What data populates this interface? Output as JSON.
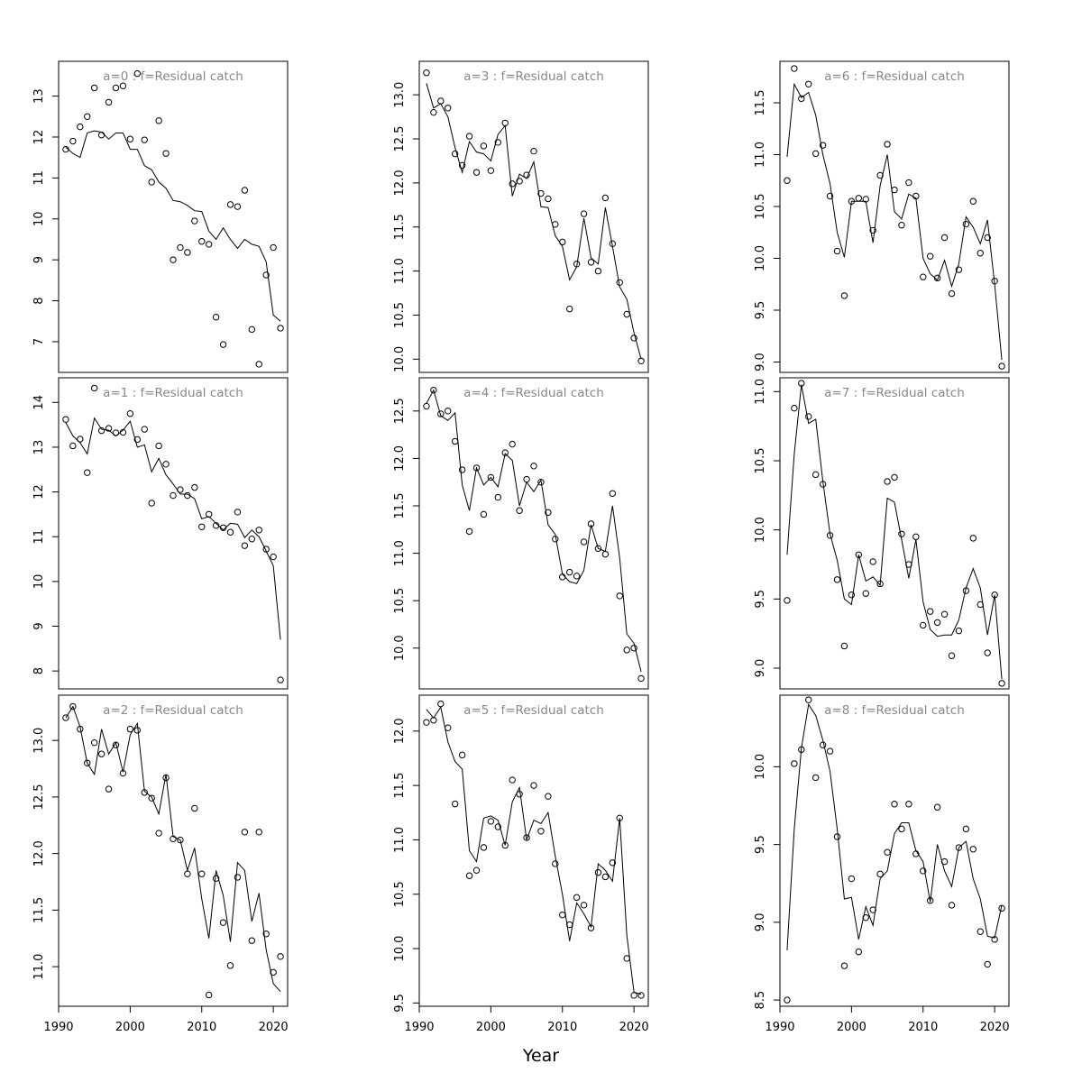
{
  "figure": {
    "xlabel": "Year",
    "colors": {
      "axes": "#000000",
      "panel_title": "#888888",
      "line": "#000000",
      "points": "#000000"
    }
  },
  "chart_data": [
    {
      "type": "scatter",
      "title": "a=0  :  f=Residual catch",
      "x": [
        1991,
        1992,
        1993,
        1994,
        1995,
        1996,
        1997,
        1998,
        1999,
        2000,
        2001,
        2002,
        2003,
        2004,
        2005,
        2006,
        2007,
        2008,
        2009,
        2010,
        2011,
        2012,
        2013,
        2014,
        2015,
        2016,
        2017,
        2018,
        2019,
        2020,
        2021
      ],
      "series": [
        {
          "kind": "points",
          "values": [
            11.7,
            11.9,
            12.25,
            12.5,
            13.2,
            12.05,
            12.85,
            13.2,
            13.25,
            11.95,
            13.55,
            11.93,
            10.9,
            12.4,
            11.6,
            9.0,
            9.3,
            9.18,
            9.95,
            9.45,
            9.38,
            7.6,
            6.93,
            10.35,
            10.3,
            10.7,
            7.3,
            6.45,
            8.63,
            9.3,
            7.33
          ]
        },
        {
          "kind": "line",
          "values": [
            11.75,
            11.6,
            11.5,
            12.1,
            12.15,
            12.12,
            11.95,
            12.1,
            12.1,
            11.7,
            11.7,
            11.3,
            11.2,
            10.9,
            10.75,
            10.45,
            10.42,
            10.33,
            10.2,
            10.18,
            9.7,
            9.5,
            9.78,
            9.5,
            9.28,
            9.5,
            9.38,
            9.33,
            8.95,
            7.65,
            7.5
          ]
        }
      ],
      "xlim": [
        1990,
        2022
      ],
      "ylim": [
        6.25,
        13.85
      ],
      "yticks": [
        7,
        8,
        9,
        10,
        11,
        12,
        13
      ],
      "xticks": []
    },
    {
      "type": "scatter",
      "title": "a=1  :  f=Residual catch",
      "x": [
        1991,
        1992,
        1993,
        1994,
        1995,
        1996,
        1997,
        1998,
        1999,
        2000,
        2001,
        2002,
        2003,
        2004,
        2005,
        2006,
        2007,
        2008,
        2009,
        2010,
        2011,
        2012,
        2013,
        2014,
        2015,
        2016,
        2017,
        2018,
        2019,
        2020,
        2021
      ],
      "series": [
        {
          "kind": "points",
          "values": [
            13.62,
            13.03,
            13.18,
            12.43,
            14.32,
            13.37,
            13.42,
            13.32,
            13.33,
            13.75,
            13.17,
            13.4,
            11.75,
            13.03,
            12.62,
            11.92,
            12.05,
            11.92,
            12.1,
            11.22,
            11.5,
            11.25,
            11.2,
            11.1,
            11.55,
            10.8,
            10.95,
            11.15,
            10.72,
            10.55,
            7.8
          ]
        },
        {
          "kind": "line",
          "values": [
            13.55,
            13.25,
            13.1,
            12.85,
            13.65,
            13.4,
            13.38,
            13.25,
            13.38,
            13.58,
            13.0,
            13.05,
            12.45,
            12.75,
            12.38,
            12.18,
            11.95,
            11.95,
            11.85,
            11.4,
            11.45,
            11.3,
            11.15,
            11.3,
            11.28,
            10.98,
            11.15,
            11.0,
            10.68,
            10.35,
            8.7
          ]
        }
      ],
      "xlim": [
        1990,
        2022
      ],
      "ylim": [
        7.6,
        14.55
      ],
      "yticks": [
        8,
        9,
        10,
        11,
        12,
        13,
        14
      ],
      "xticks": []
    },
    {
      "type": "scatter",
      "title": "a=2  :  f=Residual catch",
      "x": [
        1991,
        1992,
        1993,
        1994,
        1995,
        1996,
        1997,
        1998,
        1999,
        2000,
        2001,
        2002,
        2003,
        2004,
        2005,
        2006,
        2007,
        2008,
        2009,
        2010,
        2011,
        2012,
        2013,
        2014,
        2015,
        2016,
        2017,
        2018,
        2019,
        2020,
        2021
      ],
      "series": [
        {
          "kind": "points",
          "values": [
            13.2,
            13.3,
            13.1,
            12.8,
            12.98,
            12.88,
            12.57,
            12.96,
            12.71,
            13.1,
            13.09,
            12.54,
            12.49,
            12.18,
            12.67,
            12.13,
            12.12,
            11.82,
            12.4,
            11.82,
            10.75,
            11.78,
            11.39,
            11.01,
            11.79,
            12.19,
            11.23,
            12.19,
            11.29,
            10.95,
            11.09
          ]
        },
        {
          "kind": "line",
          "values": [
            13.2,
            13.3,
            13.12,
            12.8,
            12.7,
            13.1,
            12.88,
            12.98,
            12.72,
            13.05,
            13.15,
            12.55,
            12.5,
            12.35,
            12.7,
            12.15,
            12.12,
            11.85,
            12.05,
            11.6,
            11.25,
            11.85,
            11.63,
            11.22,
            11.92,
            11.85,
            11.4,
            11.65,
            11.15,
            10.85,
            10.78
          ]
        }
      ],
      "xlim": [
        1990,
        2022
      ],
      "ylim": [
        10.65,
        13.4
      ],
      "yticks": [
        11.0,
        11.5,
        12.0,
        12.5,
        13.0
      ],
      "xticks": [
        1990,
        2000,
        2010,
        2020
      ]
    },
    {
      "type": "scatter",
      "title": "a=3  :  f=Residual catch",
      "x": [
        1991,
        1992,
        1993,
        1994,
        1995,
        1996,
        1997,
        1998,
        1999,
        2000,
        2001,
        2002,
        2003,
        2004,
        2005,
        2006,
        2007,
        2008,
        2009,
        2010,
        2011,
        2012,
        2013,
        2014,
        2015,
        2016,
        2017,
        2018,
        2019,
        2020,
        2021
      ],
      "series": [
        {
          "kind": "points",
          "values": [
            13.25,
            12.8,
            12.93,
            12.85,
            12.33,
            12.2,
            12.53,
            12.12,
            12.42,
            12.14,
            12.46,
            12.68,
            11.99,
            12.02,
            12.09,
            12.36,
            11.88,
            11.82,
            11.53,
            11.33,
            10.57,
            11.08,
            11.65,
            11.1,
            11.0,
            11.83,
            11.31,
            10.87,
            10.51,
            10.24,
            9.98
          ]
        },
        {
          "kind": "line",
          "values": [
            13.13,
            12.85,
            12.9,
            12.75,
            12.4,
            12.12,
            12.47,
            12.35,
            12.33,
            12.25,
            12.55,
            12.65,
            11.85,
            12.1,
            12.05,
            12.24,
            11.73,
            11.72,
            11.4,
            11.28,
            10.9,
            11.05,
            11.6,
            11.15,
            11.08,
            11.72,
            11.28,
            10.82,
            10.68,
            10.3,
            10.0
          ]
        }
      ],
      "xlim": [
        1990,
        2022
      ],
      "ylim": [
        9.85,
        13.38
      ],
      "yticks": [
        10.0,
        10.5,
        11.0,
        11.5,
        12.0,
        12.5,
        13.0
      ],
      "xticks": []
    },
    {
      "type": "scatter",
      "title": "a=4  :  f=Residual catch",
      "x": [
        1991,
        1992,
        1993,
        1994,
        1995,
        1996,
        1997,
        1998,
        1999,
        2000,
        2001,
        2002,
        2003,
        2004,
        2005,
        2006,
        2007,
        2008,
        2009,
        2010,
        2011,
        2012,
        2013,
        2014,
        2015,
        2016,
        2017,
        2018,
        2019,
        2020,
        2021
      ],
      "series": [
        {
          "kind": "points",
          "values": [
            12.55,
            12.72,
            12.47,
            12.5,
            12.18,
            11.88,
            11.23,
            11.9,
            11.41,
            11.8,
            11.59,
            12.06,
            12.15,
            11.45,
            11.78,
            11.92,
            11.75,
            11.43,
            11.15,
            10.75,
            10.8,
            10.76,
            11.12,
            11.31,
            11.05,
            10.99,
            11.63,
            10.55,
            9.98,
            10.0,
            9.68
          ]
        },
        {
          "kind": "line",
          "values": [
            12.58,
            12.72,
            12.45,
            12.4,
            12.48,
            11.72,
            11.45,
            11.9,
            11.72,
            11.8,
            11.7,
            12.05,
            11.98,
            11.5,
            11.75,
            11.65,
            11.77,
            11.3,
            11.2,
            10.78,
            10.7,
            10.68,
            10.82,
            11.3,
            11.05,
            11.02,
            11.5,
            10.95,
            10.15,
            10.05,
            9.75
          ]
        }
      ],
      "xlim": [
        1990,
        2022
      ],
      "ylim": [
        9.57,
        12.85
      ],
      "yticks": [
        10.0,
        10.5,
        11.0,
        11.5,
        12.0,
        12.5
      ],
      "xticks": []
    },
    {
      "type": "scatter",
      "title": "a=5  :  f=Residual catch",
      "x": [
        1991,
        1992,
        1993,
        1994,
        1995,
        1996,
        1997,
        1998,
        1999,
        2000,
        2001,
        2002,
        2003,
        2004,
        2005,
        2006,
        2007,
        2008,
        2009,
        2010,
        2011,
        2012,
        2013,
        2014,
        2015,
        2016,
        2017,
        2018,
        2019,
        2020,
        2021
      ],
      "series": [
        {
          "kind": "points",
          "values": [
            12.08,
            12.1,
            12.25,
            12.03,
            11.33,
            11.78,
            10.67,
            10.72,
            10.93,
            11.17,
            11.12,
            10.95,
            11.55,
            11.42,
            11.02,
            11.5,
            11.08,
            11.4,
            10.78,
            10.31,
            10.22,
            10.47,
            10.4,
            10.19,
            10.7,
            10.66,
            10.79,
            11.2,
            9.91,
            9.57,
            9.57
          ]
        },
        {
          "kind": "line",
          "values": [
            12.2,
            12.12,
            12.22,
            11.9,
            11.72,
            11.65,
            10.9,
            10.8,
            11.2,
            11.22,
            11.18,
            10.95,
            11.35,
            11.48,
            11.0,
            11.18,
            11.15,
            11.25,
            10.85,
            10.5,
            10.07,
            10.42,
            10.32,
            10.2,
            10.78,
            10.72,
            10.62,
            11.2,
            10.12,
            9.6,
            9.58
          ]
        }
      ],
      "xlim": [
        1990,
        2022
      ],
      "ylim": [
        9.47,
        12.33
      ],
      "yticks": [
        9.5,
        10.0,
        10.5,
        11.0,
        11.5,
        12.0
      ],
      "xticks": [
        1990,
        2000,
        2010,
        2020
      ]
    },
    {
      "type": "scatter",
      "title": "a=6  :  f=Residual catch",
      "x": [
        1991,
        1992,
        1993,
        1994,
        1995,
        1996,
        1997,
        1998,
        1999,
        2000,
        2001,
        2002,
        2003,
        2004,
        2005,
        2006,
        2007,
        2008,
        2009,
        2010,
        2011,
        2012,
        2013,
        2014,
        2015,
        2016,
        2017,
        2018,
        2019,
        2020,
        2021
      ],
      "series": [
        {
          "kind": "points",
          "values": [
            10.75,
            11.83,
            11.54,
            11.68,
            11.01,
            11.09,
            10.6,
            10.07,
            9.64,
            10.55,
            10.58,
            10.57,
            10.27,
            10.8,
            11.1,
            10.66,
            10.32,
            10.73,
            10.6,
            9.82,
            10.02,
            9.81,
            10.2,
            9.66,
            9.89,
            10.33,
            10.55,
            10.05,
            10.2,
            9.78,
            8.96
          ]
        },
        {
          "kind": "line",
          "values": [
            10.98,
            11.68,
            11.55,
            11.6,
            11.38,
            11.0,
            10.72,
            10.25,
            10.01,
            10.55,
            10.55,
            10.55,
            10.15,
            10.7,
            11.0,
            10.45,
            10.38,
            10.62,
            10.58,
            10.0,
            9.85,
            9.79,
            9.98,
            9.73,
            9.95,
            10.4,
            10.3,
            10.14,
            10.37,
            9.75,
            9.02
          ]
        }
      ],
      "xlim": [
        1990,
        2022
      ],
      "ylim": [
        8.9,
        11.9
      ],
      "yticks": [
        9.0,
        9.5,
        10.0,
        10.5,
        11.0,
        11.5
      ],
      "xticks": []
    },
    {
      "type": "scatter",
      "title": "a=7  :  f=Residual catch",
      "x": [
        1991,
        1992,
        1993,
        1994,
        1995,
        1996,
        1997,
        1998,
        1999,
        2000,
        2001,
        2002,
        2003,
        2004,
        2005,
        2006,
        2007,
        2008,
        2009,
        2010,
        2011,
        2012,
        2013,
        2014,
        2015,
        2016,
        2017,
        2018,
        2019,
        2020,
        2021
      ],
      "series": [
        {
          "kind": "points",
          "values": [
            9.49,
            10.88,
            11.06,
            10.82,
            10.4,
            10.33,
            9.96,
            9.64,
            9.16,
            9.53,
            9.82,
            9.54,
            9.77,
            9.61,
            10.35,
            10.38,
            9.97,
            9.75,
            9.95,
            9.31,
            9.41,
            9.33,
            9.39,
            9.09,
            9.27,
            9.56,
            9.94,
            9.46,
            9.11,
            9.53,
            8.89
          ]
        },
        {
          "kind": "line",
          "values": [
            9.82,
            10.55,
            11.05,
            10.77,
            10.8,
            10.35,
            9.97,
            9.78,
            9.5,
            9.46,
            9.82,
            9.63,
            9.66,
            9.6,
            10.23,
            10.2,
            9.93,
            9.65,
            9.93,
            9.48,
            9.28,
            9.23,
            9.24,
            9.24,
            9.35,
            9.58,
            9.72,
            9.58,
            9.24,
            9.53,
            8.92
          ]
        }
      ],
      "xlim": [
        1990,
        2022
      ],
      "ylim": [
        8.85,
        11.1
      ],
      "yticks": [
        9.0,
        9.5,
        10.0,
        10.5,
        11.0
      ],
      "xticks": []
    },
    {
      "type": "scatter",
      "title": "a=8  :  f=Residual catch",
      "x": [
        1991,
        1992,
        1993,
        1994,
        1995,
        1996,
        1997,
        1998,
        1999,
        2000,
        2001,
        2002,
        2003,
        2004,
        2005,
        2006,
        2007,
        2008,
        2009,
        2010,
        2011,
        2012,
        2013,
        2014,
        2015,
        2016,
        2017,
        2018,
        2019,
        2020,
        2021
      ],
      "series": [
        {
          "kind": "points",
          "values": [
            8.5,
            10.02,
            10.11,
            10.43,
            9.93,
            10.14,
            10.1,
            9.55,
            8.72,
            9.28,
            8.81,
            9.03,
            9.08,
            9.31,
            9.45,
            9.76,
            9.6,
            9.76,
            9.44,
            9.33,
            9.14,
            9.74,
            9.39,
            9.11,
            9.48,
            9.6,
            9.47,
            8.94,
            8.73,
            8.89,
            9.09
          ]
        },
        {
          "kind": "line",
          "values": [
            8.82,
            9.6,
            10.12,
            10.4,
            10.33,
            10.17,
            9.97,
            9.6,
            9.15,
            9.16,
            8.89,
            9.1,
            8.98,
            9.28,
            9.33,
            9.57,
            9.64,
            9.64,
            9.46,
            9.39,
            9.13,
            9.5,
            9.33,
            9.23,
            9.48,
            9.52,
            9.28,
            9.15,
            8.91,
            8.9,
            9.11
          ]
        }
      ],
      "xlim": [
        1990,
        2022
      ],
      "ylim": [
        8.46,
        10.46
      ],
      "yticks": [
        8.5,
        9.0,
        9.5,
        10.0
      ],
      "xticks": [
        1990,
        2000,
        2010,
        2020
      ]
    }
  ]
}
